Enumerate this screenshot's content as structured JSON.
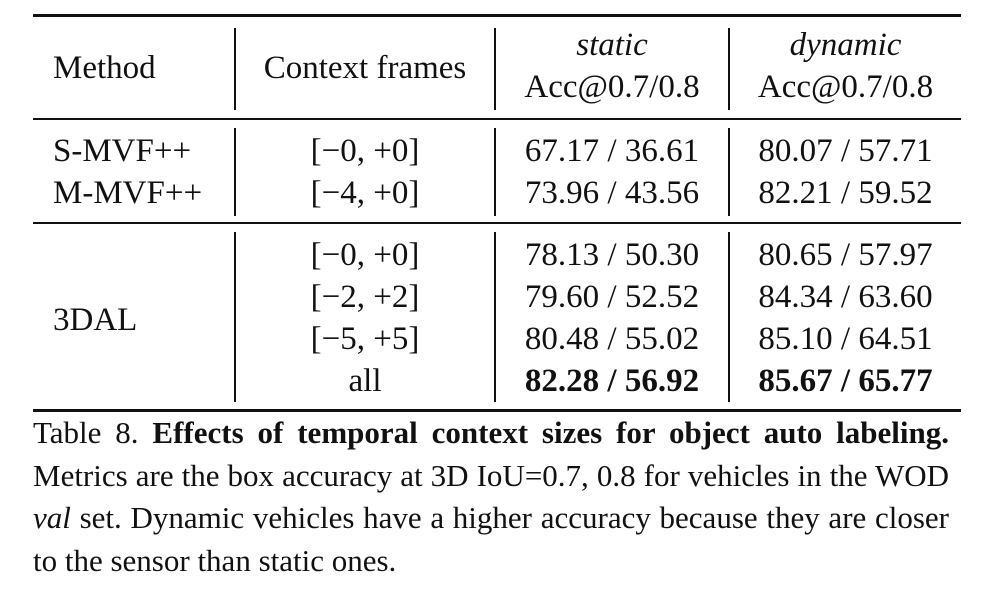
{
  "table": {
    "header": {
      "method": "Method",
      "context": "Context frames",
      "static_top": "static",
      "static_bottom": "Acc@0.7/0.8",
      "dynamic_top": "dynamic",
      "dynamic_bottom": "Acc@0.7/0.8"
    },
    "group1": [
      {
        "method": "S-MVF++",
        "context": "[−0, +0]",
        "static": "67.17 / 36.61",
        "dynamic": "80.07 / 57.71"
      },
      {
        "method": "M-MVF++",
        "context": "[−4, +0]",
        "static": "73.96 / 43.56",
        "dynamic": "82.21 / 59.52"
      }
    ],
    "group2": {
      "method": "3DAL",
      "rows": [
        {
          "context": "[−0, +0]",
          "static": "78.13 / 50.30",
          "dynamic": "80.65 / 57.97"
        },
        {
          "context": "[−2, +2]",
          "static": "79.60 / 52.52",
          "dynamic": "84.34 / 63.60"
        },
        {
          "context": "[−5, +5]",
          "static": "80.48 / 55.02",
          "dynamic": "85.10 / 64.51"
        },
        {
          "context": "all",
          "static": "82.28 / 56.92",
          "dynamic": "85.67 / 65.77"
        }
      ]
    }
  },
  "caption": {
    "label": "Table 8.",
    "title": "Effects of temporal context sizes for object auto label­ing.",
    "text1": "Metrics are the box accuracy at 3D IoU=0.7, 0.8 for vehicles in the WOD",
    "italic": "val",
    "text2": "set.  Dynamic vehicles have a higher accuracy because they are closer to the sensor than static ones."
  }
}
